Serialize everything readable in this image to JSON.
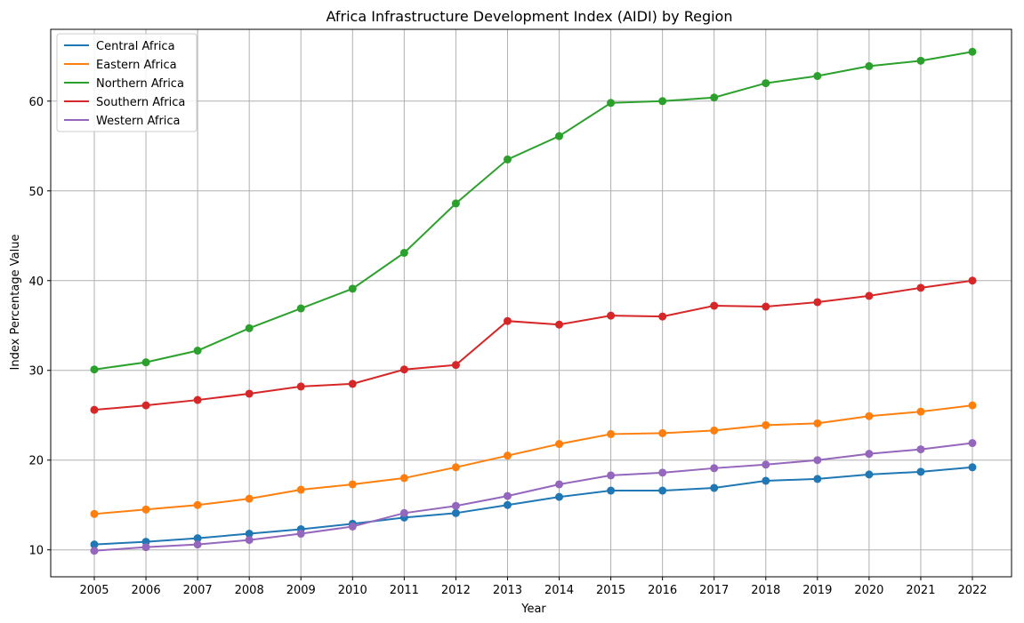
{
  "chart_data": {
    "type": "line",
    "title": "Africa Infrastructure Development Index (AIDI) by Region",
    "xlabel": "Year",
    "ylabel": "Index Percentage Value",
    "x": [
      "2005",
      "2006",
      "2007",
      "2008",
      "2009",
      "2010",
      "2011",
      "2012",
      "2013",
      "2014",
      "2015",
      "2016",
      "2017",
      "2018",
      "2019",
      "2020",
      "2021",
      "2022"
    ],
    "ylim": [
      7,
      68
    ],
    "yticks": [
      10,
      20,
      30,
      40,
      50,
      60
    ],
    "grid": true,
    "legend_position": "top-left",
    "series": [
      {
        "name": "Central Africa",
        "color": "#1f77b4",
        "values": [
          10.6,
          10.9,
          11.3,
          11.8,
          12.3,
          12.9,
          13.6,
          14.1,
          15.0,
          15.9,
          16.6,
          16.6,
          16.9,
          17.7,
          17.9,
          18.4,
          18.7,
          19.2
        ]
      },
      {
        "name": "Eastern Africa",
        "color": "#ff7f0e",
        "values": [
          14.0,
          14.5,
          15.0,
          15.7,
          16.7,
          17.3,
          18.0,
          19.2,
          20.5,
          21.8,
          22.9,
          23.0,
          23.3,
          23.9,
          24.1,
          24.9,
          25.4,
          26.1
        ]
      },
      {
        "name": "Northern Africa",
        "color": "#2ca02c",
        "values": [
          30.1,
          30.9,
          32.2,
          34.7,
          36.9,
          39.1,
          43.1,
          48.6,
          53.5,
          56.1,
          59.8,
          60.0,
          60.4,
          62.0,
          62.8,
          63.9,
          64.5,
          65.5
        ]
      },
      {
        "name": "Southern Africa",
        "color": "#d62728",
        "values": [
          25.6,
          26.1,
          26.7,
          27.4,
          28.2,
          28.5,
          30.1,
          30.6,
          35.5,
          35.1,
          36.1,
          36.0,
          37.2,
          37.1,
          37.6,
          38.3,
          39.2,
          40.0
        ]
      },
      {
        "name": "Western Africa",
        "color": "#9467bd",
        "values": [
          9.9,
          10.3,
          10.6,
          11.1,
          11.8,
          12.6,
          14.1,
          14.9,
          16.0,
          17.3,
          18.3,
          18.6,
          19.1,
          19.5,
          20.0,
          20.7,
          21.2,
          21.9
        ]
      }
    ]
  }
}
